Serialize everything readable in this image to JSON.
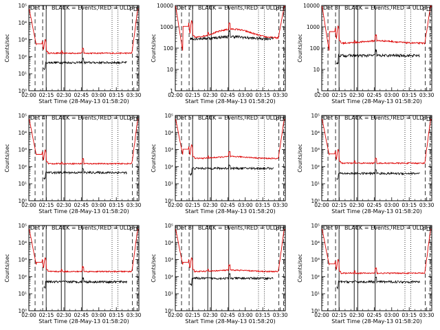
{
  "chart_data": {
    "type": "line",
    "layout": "3x3 grid",
    "yscale": "log",
    "ylabel": "Counts/sec",
    "xlabel": "Start Time (28-May-13 01:58:20)",
    "x_tick_labels": [
      "02:00",
      "02:15",
      "02:30",
      "02:45",
      "03:00",
      "03:15",
      "03:30"
    ],
    "x_tick_minutes": [
      1.67,
      16.67,
      31.67,
      46.67,
      61.67,
      76.67,
      91.67
    ],
    "xlim_minutes": [
      1.67,
      96.0
    ],
    "legend_text": "BLACK = Events, RED = ULD",
    "series_colors": {
      "events": "#000000",
      "uld": "#dd0000"
    },
    "marker_glyphs": {
      "p": "P",
      "d": "D",
      "s": "S"
    },
    "markers": [
      {
        "label_key": "p",
        "minute": 89.5
      },
      {
        "label_key": "d",
        "minute": 93.0
      },
      {
        "label_key": "s",
        "minute": 95.0
      }
    ],
    "vlines_dashed_minutes": [
      7.0,
      13.5,
      90.5,
      94.5
    ],
    "vlines_solid_minutes": [
      16.5,
      29.5,
      32.5,
      47.5
    ],
    "vlines_dotted_minutes": [
      73.0,
      78.0
    ],
    "panels": [
      {
        "title": "Det  1",
        "ylim": [
          1,
          100000
        ],
        "y_tick_labels": [
          "10⁰",
          "10¹",
          "10²",
          "10³",
          "10⁴",
          "10⁵"
        ],
        "events_level": 45,
        "uld_level": 160,
        "uld_start": 60000,
        "uld_bump": 1.0
      },
      {
        "title": "Det  2",
        "ylim": [
          1,
          10000
        ],
        "y_tick_labels": [
          "1",
          "10",
          "100",
          "1000",
          "10000"
        ],
        "events_level": 280,
        "uld_level": 300,
        "uld_start": 9000,
        "uld_bump": 2.6
      },
      {
        "title": "Det  3",
        "ylim": [
          1,
          10000
        ],
        "y_tick_labels": [
          "1",
          "10",
          "100",
          "1000",
          "10000"
        ],
        "events_level": 45,
        "uld_level": 170,
        "uld_start": 9000,
        "uld_bump": 1.3
      },
      {
        "title": "Det  4",
        "ylim": [
          1,
          100000
        ],
        "y_tick_labels": [
          "10⁰",
          "10¹",
          "10²",
          "10³",
          "10⁴",
          "10⁵"
        ],
        "events_level": 45,
        "uld_level": 150,
        "uld_start": 60000,
        "uld_bump": 1.0
      },
      {
        "title": "Det  5",
        "ylim": [
          1,
          100000
        ],
        "y_tick_labels": [
          "10⁰",
          "10¹",
          "10²",
          "10³",
          "10⁴",
          "10⁵"
        ],
        "events_level": 80,
        "uld_level": 300,
        "uld_start": 60000,
        "uld_bump": 1.3
      },
      {
        "title": "Det  6",
        "ylim": [
          1,
          100000
        ],
        "y_tick_labels": [
          "10⁰",
          "10¹",
          "10²",
          "10³",
          "10⁴",
          "10⁵"
        ],
        "events_level": 40,
        "uld_level": 160,
        "uld_start": 60000,
        "uld_bump": 1.0
      },
      {
        "title": "Det  7",
        "ylim": [
          1,
          100000
        ],
        "y_tick_labels": [
          "10⁰",
          "10¹",
          "10²",
          "10³",
          "10⁴",
          "10⁵"
        ],
        "events_level": 50,
        "uld_level": 200,
        "uld_start": 60000,
        "uld_bump": 1.0
      },
      {
        "title": "Det  8",
        "ylim": [
          1,
          100000
        ],
        "y_tick_labels": [
          "10⁰",
          "10¹",
          "10²",
          "10³",
          "10⁴",
          "10⁵"
        ],
        "events_level": 80,
        "uld_level": 200,
        "uld_start": 60000,
        "uld_bump": 1.2
      },
      {
        "title": "Det  9",
        "ylim": [
          1,
          100000
        ],
        "y_tick_labels": [
          "10⁰",
          "10¹",
          "10²",
          "10³",
          "10⁴",
          "10⁵"
        ],
        "events_level": 50,
        "uld_level": 160,
        "uld_start": 60000,
        "uld_bump": 1.0
      }
    ]
  }
}
